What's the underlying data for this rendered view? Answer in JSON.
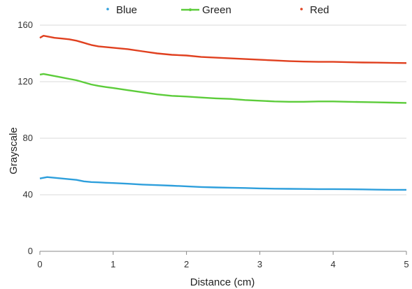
{
  "chart_data": {
    "type": "line",
    "title": "",
    "xlabel": "Distance (cm)",
    "ylabel": "Grayscale",
    "xlim": [
      0,
      5
    ],
    "ylim": [
      0,
      160
    ],
    "x_ticks": [
      0,
      1,
      2,
      3,
      4,
      5
    ],
    "y_ticks": [
      0,
      40,
      80,
      120,
      160
    ],
    "grid": "horizontal",
    "legend": "top",
    "x": [
      0,
      0.05,
      0.1,
      0.2,
      0.3,
      0.4,
      0.5,
      0.6,
      0.7,
      0.8,
      0.9,
      1.0,
      1.2,
      1.4,
      1.6,
      1.8,
      2.0,
      2.2,
      2.4,
      2.6,
      2.8,
      3.0,
      3.2,
      3.4,
      3.6,
      3.8,
      4.0,
      4.2,
      4.4,
      4.6,
      4.8,
      5.0
    ],
    "series": [
      {
        "name": "Blue",
        "color": "#2e9fdc",
        "values": [
          51.5,
          52,
          52.5,
          52,
          51.5,
          51,
          50.5,
          49.5,
          49,
          48.8,
          48.5,
          48.3,
          47.8,
          47.2,
          46.8,
          46.4,
          46,
          45.5,
          45.2,
          45,
          44.8,
          44.5,
          44.3,
          44.2,
          44.1,
          44,
          44,
          43.9,
          43.8,
          43.6,
          43.5,
          43.5
        ]
      },
      {
        "name": "Green",
        "color": "#5ccc3a",
        "values": [
          125,
          125.5,
          125,
          124,
          123,
          122,
          121,
          119.5,
          118,
          117,
          116.2,
          115.5,
          114,
          112.5,
          111,
          110,
          109.5,
          108.8,
          108.2,
          107.8,
          107,
          106.5,
          106,
          105.8,
          105.8,
          106,
          106,
          105.8,
          105.6,
          105.4,
          105.2,
          105
        ]
      },
      {
        "name": "Red",
        "color": "#e0401f",
        "values": [
          151,
          152.5,
          152,
          151,
          150.5,
          150,
          149,
          147.5,
          146,
          145,
          144.5,
          144,
          143,
          141.5,
          140,
          139,
          138.5,
          137.5,
          137,
          136.5,
          136,
          135.5,
          135,
          134.5,
          134.2,
          134,
          134,
          133.8,
          133.6,
          133.5,
          133.3,
          133.2
        ]
      }
    ]
  }
}
